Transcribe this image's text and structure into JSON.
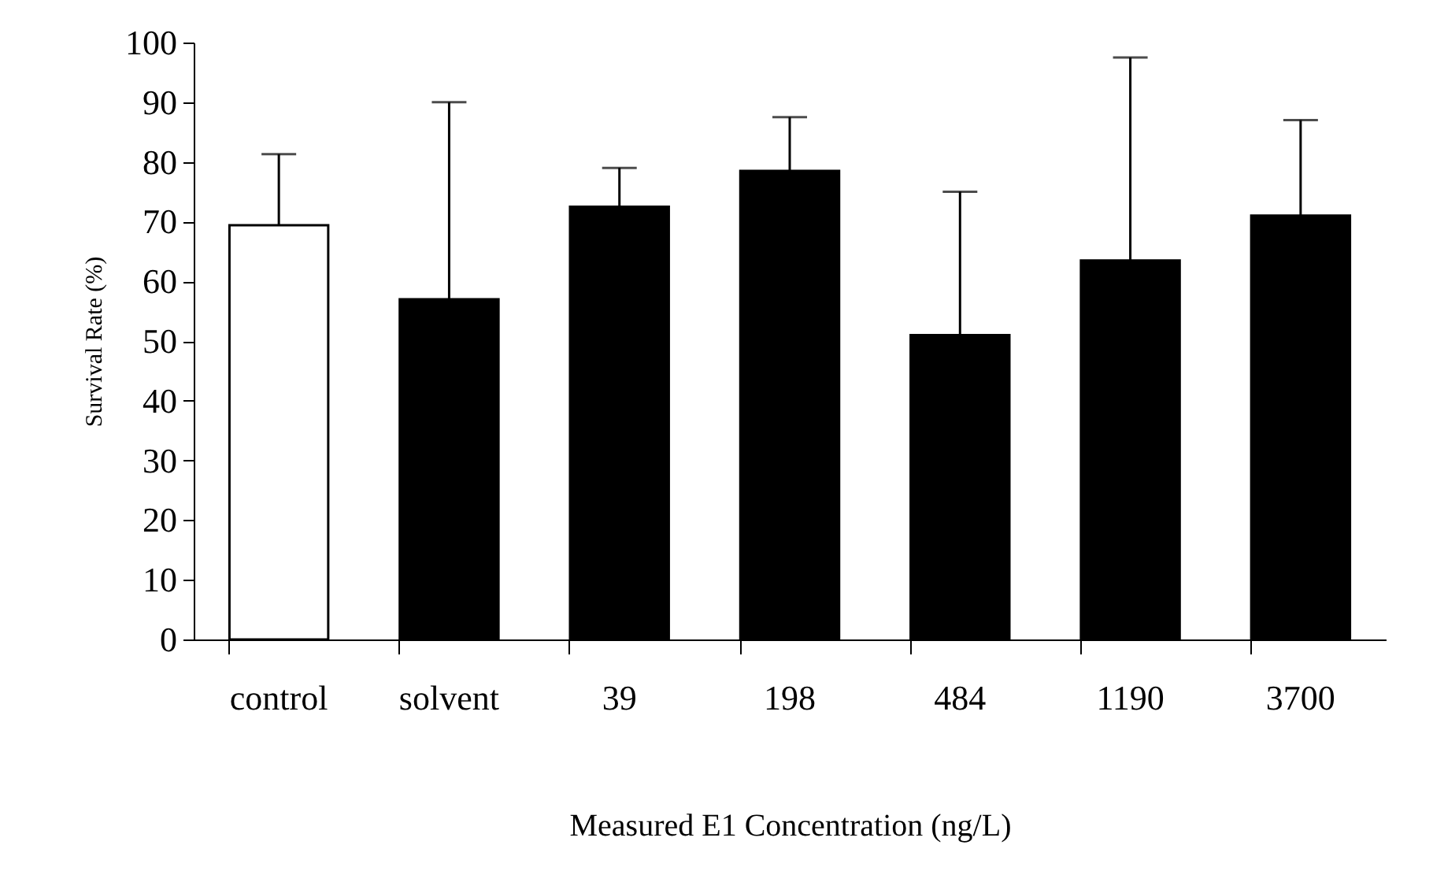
{
  "chart_data": {
    "type": "bar",
    "xlabel": "Measured E1 Concentration (ng/L)",
    "ylabel": "Survival Rate (%)",
    "categories": [
      "control",
      "solvent",
      "39",
      "198",
      "484",
      "1190",
      "3700"
    ],
    "values": [
      69.4,
      57,
      72.5,
      78.5,
      51,
      63.5,
      71
    ],
    "colors": [
      "#ffffff",
      "#000000",
      "#000000",
      "#000000",
      "#000000",
      "#000000",
      "#000000"
    ],
    "errors": [
      [
        69.4,
        81.3
      ],
      [
        57,
        90
      ],
      [
        72.5,
        79
      ],
      [
        78.5,
        87.5
      ],
      [
        51,
        75
      ],
      [
        63.5,
        97.5
      ],
      [
        71,
        87
      ]
    ],
    "ylim": [
      0,
      100
    ],
    "yticks": [
      0,
      10,
      20,
      30,
      40,
      50,
      60,
      70,
      80,
      90,
      100
    ],
    "grid": false
  }
}
